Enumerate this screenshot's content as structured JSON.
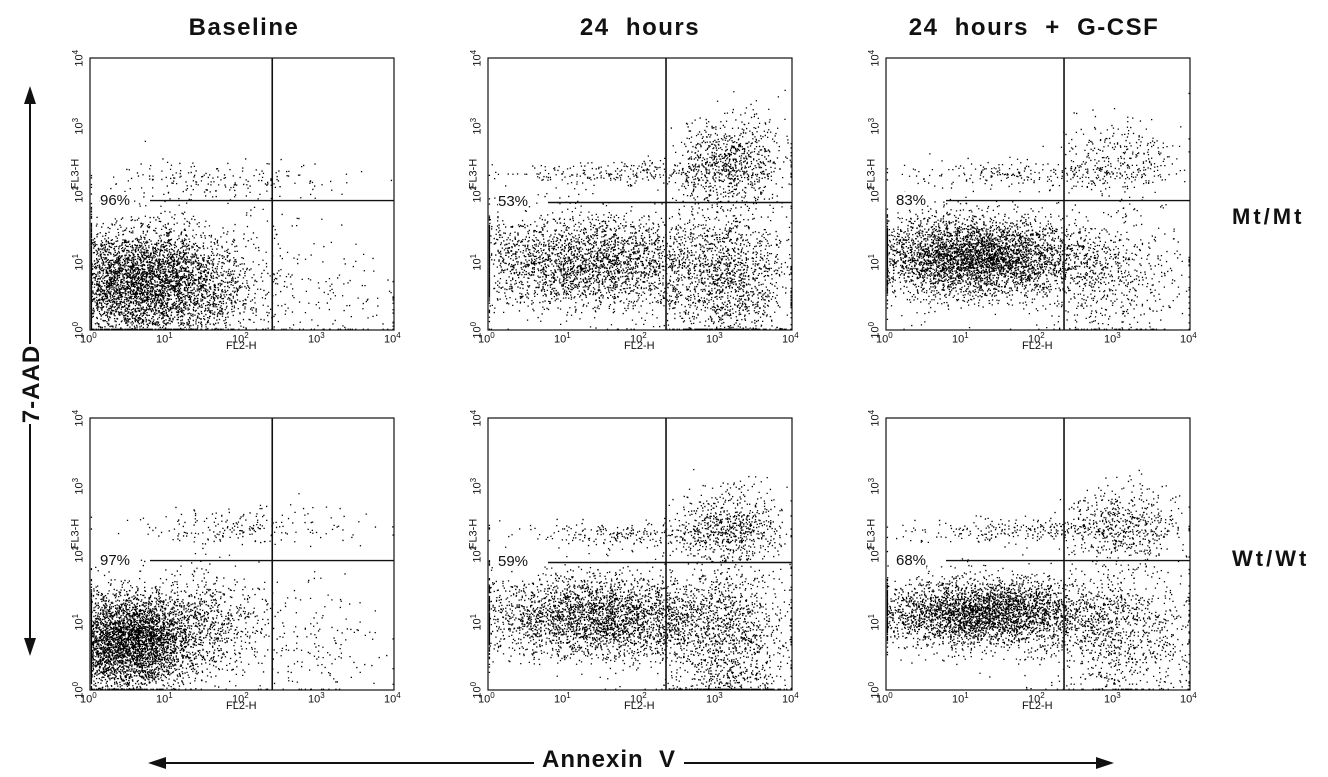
{
  "column_titles": [
    "Baseline",
    "24  hours",
    "24  hours  +  G-CSF"
  ],
  "row_labels": [
    "Mt/Mt",
    "Wt/Wt"
  ],
  "y_axis_label": "7-AAD",
  "x_axis_label": "Annexin  V",
  "chart_data": [
    {
      "type": "scatter",
      "column": "Baseline",
      "row": "Mt/Mt",
      "quadrant_percent": "96%",
      "xlabel": "FL2-H",
      "ylabel": "FL3-H",
      "xscale": "log",
      "yscale": "log",
      "xlim": [
        1,
        10000
      ],
      "ylim": [
        1,
        10000
      ],
      "quadrant_x": 250,
      "quadrant_y": 80,
      "populations": [
        {
          "center": [
            5,
            5
          ],
          "spread": [
            0.7,
            0.4
          ],
          "weight": 0.93
        },
        {
          "center": [
            40,
            160
          ],
          "spread": [
            0.8,
            0.15
          ],
          "weight": 0.04
        },
        {
          "center": [
            800,
            3
          ],
          "spread": [
            0.6,
            0.5
          ],
          "weight": 0.03
        }
      ]
    },
    {
      "type": "scatter",
      "column": "24  hours",
      "row": "Mt/Mt",
      "quadrant_percent": "53%",
      "xlabel": "FL2-H",
      "ylabel": "FL3-H",
      "xscale": "log",
      "yscale": "log",
      "xlim": [
        1,
        10000
      ],
      "ylim": [
        1,
        10000
      ],
      "quadrant_x": 220,
      "quadrant_y": 75,
      "populations": [
        {
          "center": [
            20,
            10
          ],
          "spread": [
            0.9,
            0.35
          ],
          "weight": 0.55
        },
        {
          "center": [
            1500,
            300
          ],
          "spread": [
            0.35,
            0.3
          ],
          "weight": 0.15
        },
        {
          "center": [
            80,
            200
          ],
          "spread": [
            0.9,
            0.1
          ],
          "weight": 0.05
        },
        {
          "center": [
            1500,
            5
          ],
          "spread": [
            0.4,
            0.6
          ],
          "weight": 0.25
        }
      ]
    },
    {
      "type": "scatter",
      "column": "24  hours  +  G-CSF",
      "row": "Mt/Mt",
      "quadrant_percent": "83%",
      "xlabel": "FL2-H",
      "ylabel": "FL3-H",
      "xscale": "log",
      "yscale": "log",
      "xlim": [
        1,
        10000
      ],
      "ylim": [
        1,
        10000
      ],
      "quadrant_x": 220,
      "quadrant_y": 80,
      "populations": [
        {
          "center": [
            15,
            12
          ],
          "spread": [
            0.7,
            0.3
          ],
          "weight": 0.78
        },
        {
          "center": [
            1200,
            300
          ],
          "spread": [
            0.4,
            0.3
          ],
          "weight": 0.06
        },
        {
          "center": [
            60,
            200
          ],
          "spread": [
            0.8,
            0.1
          ],
          "weight": 0.04
        },
        {
          "center": [
            900,
            6
          ],
          "spread": [
            0.5,
            0.5
          ],
          "weight": 0.12
        }
      ]
    },
    {
      "type": "scatter",
      "column": "Baseline",
      "row": "Wt/Wt",
      "quadrant_percent": "97%",
      "xlabel": "FL2-H",
      "ylabel": "FL3-H",
      "xscale": "log",
      "yscale": "log",
      "xlim": [
        1,
        10000
      ],
      "ylim": [
        1,
        10000
      ],
      "quadrant_x": 250,
      "quadrant_y": 80,
      "populations": [
        {
          "center": [
            3,
            5
          ],
          "spread": [
            0.45,
            0.35
          ],
          "weight": 0.75
        },
        {
          "center": [
            20,
            10
          ],
          "spread": [
            0.55,
            0.35
          ],
          "weight": 0.18
        },
        {
          "center": [
            100,
            250
          ],
          "spread": [
            0.8,
            0.15
          ],
          "weight": 0.04
        },
        {
          "center": [
            900,
            5
          ],
          "spread": [
            0.5,
            0.5
          ],
          "weight": 0.03
        }
      ]
    },
    {
      "type": "scatter",
      "column": "24  hours",
      "row": "Wt/Wt",
      "quadrant_percent": "59%",
      "xlabel": "FL2-H",
      "ylabel": "FL3-H",
      "xscale": "log",
      "yscale": "log",
      "xlim": [
        1,
        10000
      ],
      "ylim": [
        1,
        10000
      ],
      "quadrant_x": 220,
      "quadrant_y": 75,
      "populations": [
        {
          "center": [
            30,
            12
          ],
          "spread": [
            0.85,
            0.3
          ],
          "weight": 0.6
        },
        {
          "center": [
            1500,
            250
          ],
          "spread": [
            0.35,
            0.3
          ],
          "weight": 0.12
        },
        {
          "center": [
            100,
            200
          ],
          "spread": [
            0.9,
            0.1
          ],
          "weight": 0.05
        },
        {
          "center": [
            1500,
            4
          ],
          "spread": [
            0.4,
            0.6
          ],
          "weight": 0.23
        }
      ]
    },
    {
      "type": "scatter",
      "column": "24  hours  +  G-CSF",
      "row": "Wt/Wt",
      "quadrant_percent": "68%",
      "xlabel": "FL2-H",
      "ylabel": "FL3-H",
      "xscale": "log",
      "yscale": "log",
      "xlim": [
        1,
        10000
      ],
      "ylim": [
        1,
        10000
      ],
      "quadrant_x": 220,
      "quadrant_y": 80,
      "populations": [
        {
          "center": [
            20,
            14
          ],
          "spread": [
            0.75,
            0.25
          ],
          "weight": 0.68
        },
        {
          "center": [
            1300,
            250
          ],
          "spread": [
            0.4,
            0.3
          ],
          "weight": 0.1
        },
        {
          "center": [
            80,
            220
          ],
          "spread": [
            0.8,
            0.1
          ],
          "weight": 0.05
        },
        {
          "center": [
            1200,
            6
          ],
          "spread": [
            0.5,
            0.5
          ],
          "weight": 0.17
        }
      ]
    }
  ]
}
